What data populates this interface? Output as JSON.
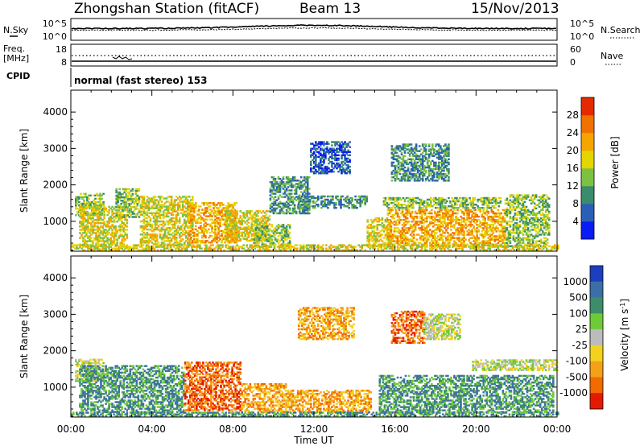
{
  "header": {
    "station": "Zhongshan Station (fitACF)",
    "beam": "Beam 13",
    "date": "15/Nov/2013"
  },
  "noise_panel": {
    "left_label": "N.Sky",
    "left_ticks": [
      "10^5",
      "10^0"
    ],
    "right_label": "N.Search",
    "right_ticks": [
      "10^5",
      "10^0"
    ]
  },
  "freq_panel": {
    "left_label_top": "Freq.",
    "left_label_bottom": "[MHz]",
    "left_ticks": [
      "18",
      "8"
    ],
    "right_label": "Nave",
    "right_ticks": [
      "60",
      "0"
    ]
  },
  "cpid": {
    "label": "CPID",
    "mode": "normal (fast stereo) 153"
  },
  "chart_data": [
    {
      "type": "heatmap",
      "name": "power",
      "ylabel": "Slant Range [km]",
      "xlabel": "Time UT",
      "xticks": [
        "00:00",
        "04:00",
        "08:00",
        "12:00",
        "16:00",
        "20:00",
        "00:00"
      ],
      "xlim_hours": [
        0,
        24
      ],
      "yticks": [
        "1000",
        "2000",
        "3000",
        "4000"
      ],
      "ylim": [
        180,
        4600
      ],
      "colorbar": {
        "label": "Power [dB]",
        "ticks": [
          "4",
          "8",
          "12",
          "16",
          "20",
          "24",
          "28"
        ],
        "range": [
          0,
          32
        ],
        "colors": [
          "#0b1bf5",
          "#2b5fb7",
          "#3a8c6c",
          "#7cc142",
          "#e4d400",
          "#f5a400",
          "#f07200",
          "#e42a00"
        ]
      },
      "echo_regions_hours_km": [
        {
          "t0": 0.2,
          "t1": 1.6,
          "r0": 1150,
          "r1": 1750,
          "level": 3
        },
        {
          "t0": 0.4,
          "t1": 2.8,
          "r0": 300,
          "r1": 1400,
          "level": 4
        },
        {
          "t0": 2.2,
          "t1": 3.4,
          "r0": 1100,
          "r1": 1900,
          "level": 3
        },
        {
          "t0": 3.4,
          "t1": 6.0,
          "r0": 350,
          "r1": 1700,
          "level": 4
        },
        {
          "t0": 5.8,
          "t1": 8.2,
          "r0": 400,
          "r1": 1500,
          "level": 5
        },
        {
          "t0": 7.6,
          "t1": 9.8,
          "r0": 450,
          "r1": 1300,
          "level": 4
        },
        {
          "t0": 9.0,
          "t1": 10.8,
          "r0": 300,
          "r1": 900,
          "level": 3
        },
        {
          "t0": 9.8,
          "t1": 11.8,
          "r0": 1200,
          "r1": 2200,
          "level": 2
        },
        {
          "t0": 11.2,
          "t1": 14.6,
          "r0": 1350,
          "r1": 1700,
          "level": 2
        },
        {
          "t0": 11.8,
          "t1": 13.8,
          "r0": 2300,
          "r1": 3200,
          "level": 1
        },
        {
          "t0": 14.6,
          "t1": 15.8,
          "r0": 300,
          "r1": 1100,
          "level": 4
        },
        {
          "t0": 15.8,
          "t1": 18.6,
          "r0": 2100,
          "r1": 3100,
          "level": 2
        },
        {
          "t0": 15.4,
          "t1": 21.2,
          "r0": 1350,
          "r1": 1650,
          "level": 3
        },
        {
          "t0": 15.6,
          "t1": 21.4,
          "r0": 300,
          "r1": 1300,
          "level": 5
        },
        {
          "t0": 21.4,
          "t1": 23.6,
          "r0": 300,
          "r1": 1700,
          "level": 3
        },
        {
          "t0": 0.0,
          "t1": 24.0,
          "r0": 190,
          "r1": 330,
          "level": 4
        }
      ]
    },
    {
      "type": "heatmap",
      "name": "velocity",
      "ylabel": "Slant Range [km]",
      "xlabel": "Time UT",
      "xticks": [
        "00:00",
        "04:00",
        "08:00",
        "12:00",
        "16:00",
        "20:00",
        "00:00"
      ],
      "xlim_hours": [
        0,
        24
      ],
      "yticks": [
        "1000",
        "2000",
        "3000",
        "4000"
      ],
      "ylim": [
        180,
        4600
      ],
      "colorbar": {
        "label": "Velocity [m s^-1]",
        "ticks": [
          "1000",
          "500",
          "100",
          "25",
          "-25",
          "-100",
          "-500",
          "-1000"
        ],
        "colors": [
          "#1d3fbe",
          "#3c6fa8",
          "#3d8c6a",
          "#6fca3a",
          "#bcbcbc",
          "#f2d21c",
          "#f4a11a",
          "#f26a00",
          "#e41a00"
        ]
      },
      "echo_regions_hours_km": [
        {
          "t0": 0.2,
          "t1": 1.6,
          "r0": 1150,
          "r1": 1750,
          "level": 4
        },
        {
          "t0": 0.4,
          "t1": 5.6,
          "r0": 300,
          "r1": 1600,
          "level": 2
        },
        {
          "t0": 5.6,
          "t1": 8.4,
          "r0": 350,
          "r1": 1700,
          "level": 7
        },
        {
          "t0": 8.4,
          "t1": 10.6,
          "r0": 300,
          "r1": 1100,
          "level": 6
        },
        {
          "t0": 10.6,
          "t1": 14.8,
          "r0": 300,
          "r1": 900,
          "level": 6
        },
        {
          "t0": 11.2,
          "t1": 14.0,
          "r0": 2300,
          "r1": 3200,
          "level": 6
        },
        {
          "t0": 15.8,
          "t1": 17.4,
          "r0": 2200,
          "r1": 3100,
          "level": 7
        },
        {
          "t0": 17.4,
          "t1": 19.2,
          "r0": 2300,
          "r1": 3000,
          "level": 4
        },
        {
          "t0": 15.2,
          "t1": 23.8,
          "r0": 300,
          "r1": 1300,
          "level": 2
        },
        {
          "t0": 19.8,
          "t1": 24.0,
          "r0": 1450,
          "r1": 1750,
          "level": 4
        },
        {
          "t0": 0.0,
          "t1": 24.0,
          "r0": 190,
          "r1": 320,
          "level": 2
        }
      ]
    }
  ]
}
